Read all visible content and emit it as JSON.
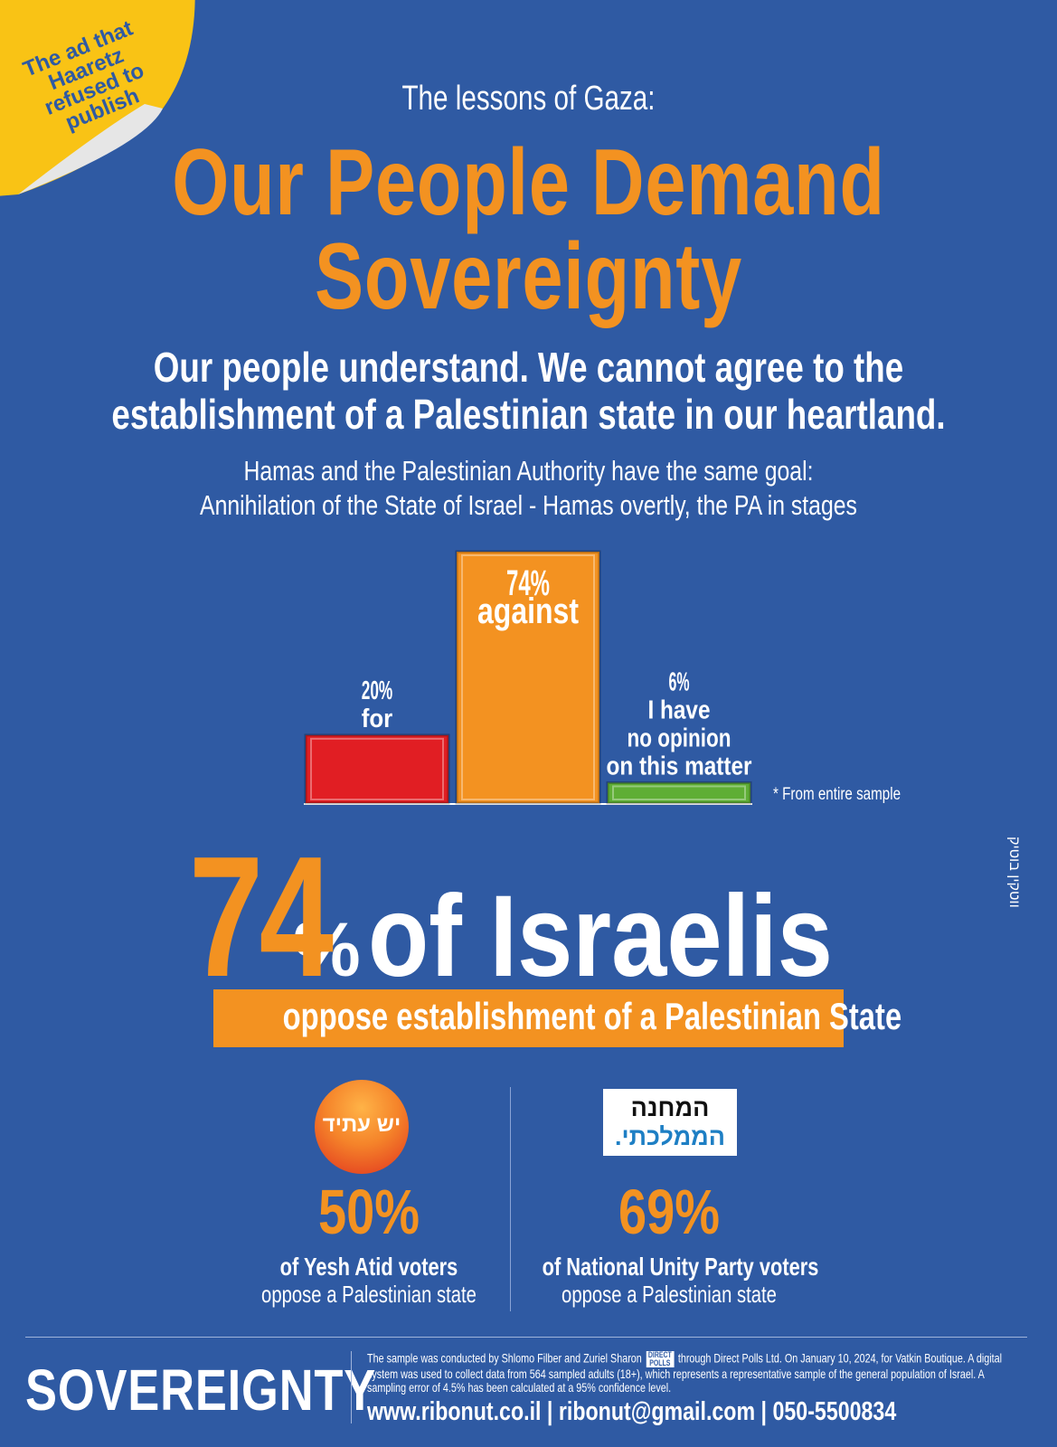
{
  "sticker": {
    "text": "The ad that Haaretz refused to publish",
    "color": "#f9c315"
  },
  "header": {
    "kicker": "The lessons of Gaza:",
    "headline_line1": "Our People Demand",
    "headline_line2": "Sovereignty",
    "subhead_line1": "Our people understand. We cannot agree to the",
    "subhead_line2": "establishment of a Palestinian state in our heartland.",
    "goal_line1": "Hamas and the Palestinian Authority have the same goal:",
    "goal_line2": "Annihilation of the State of Israel - Hamas overtly, the PA in stages"
  },
  "chart_data": {
    "type": "bar",
    "categories": [
      "for",
      "against",
      "I have no opinion on this matter"
    ],
    "values": [
      20,
      74,
      6
    ],
    "unit": "%",
    "colors": [
      "#e11e23",
      "#f39221",
      "#5fae35"
    ],
    "labels": [
      [
        "20%",
        "for"
      ],
      [
        "74%",
        "against"
      ],
      [
        "6%",
        "I have",
        "no opinion",
        "on this matter"
      ]
    ],
    "ylim": [
      0,
      74
    ],
    "note": "* From entire sample"
  },
  "highlight": {
    "number": "74",
    "percent_sign": "%",
    "rest": "of Israelis",
    "banner": "oppose establishment of a Palestinian State"
  },
  "parties": [
    {
      "logo_text": "יש עתיד",
      "pct": "50%",
      "line1": "of Yesh Atid voters",
      "line2": "oppose a Palestinian state"
    },
    {
      "logo_text_1": "המחנה",
      "logo_text_2": "הממלכתי.",
      "pct": "69%",
      "line1": "of National Unity Party voters",
      "line2": "oppose a Palestinian state"
    }
  ],
  "footer": {
    "brand": "SOVEREIGNTY",
    "text_part1": "The sample was conducted by Shlomo Filber and Zuriel Sharon",
    "polls_logo": "DIRECT POLLS",
    "text_part2": "through Direct Polls Ltd. On January 10, 2024, for Vatkin Boutique. A digital system was used to collect data from 564 sampled adults (18+), which represents a representative sample of the general population of Israel. A sampling error of 4.5% has been calculated at a 95% confidence level.",
    "contact": "www.ribonut.co.il | ribonut@gmail.com | 050-5500834"
  },
  "credit": "ווטקין בוטיק"
}
